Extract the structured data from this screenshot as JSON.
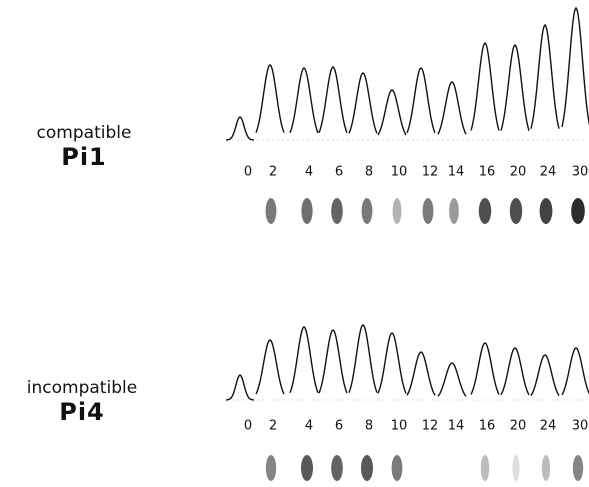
{
  "panels": [
    {
      "label": "compatible",
      "name": "Pi1",
      "lanes": [
        "0",
        "2",
        "4",
        "6",
        "8",
        "10",
        "12",
        "14",
        "16",
        "20",
        "24",
        "30"
      ],
      "peaks": [
        23,
        75,
        72,
        73,
        67,
        50,
        72,
        58,
        97,
        95,
        115,
        132
      ],
      "blots": [
        null,
        60,
        65,
        70,
        60,
        35,
        60,
        45,
        80,
        80,
        85,
        95
      ]
    },
    {
      "label": "incompatible",
      "name": "Pi4",
      "lanes": [
        "0",
        "2",
        "4",
        "6",
        "8",
        "10",
        "12",
        "14",
        "16",
        "20",
        "24",
        "30"
      ],
      "peaks": [
        25,
        60,
        73,
        70,
        75,
        67,
        48,
        37,
        57,
        52,
        45,
        52
      ],
      "blots": [
        null,
        55,
        75,
        70,
        75,
        60,
        null,
        null,
        30,
        15,
        30,
        55
      ]
    }
  ]
}
